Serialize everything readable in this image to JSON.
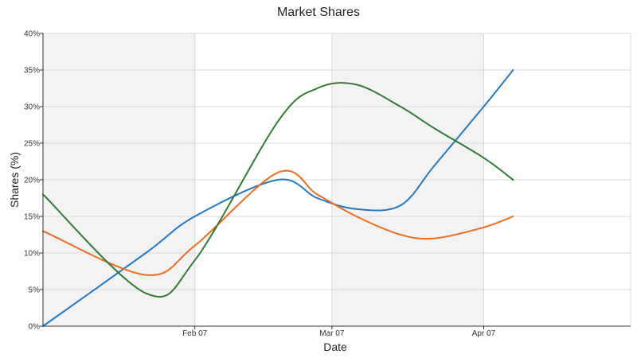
{
  "chart_data": {
    "type": "line",
    "title": "Market Shares",
    "xlabel": "Date",
    "ylabel": "Shares (%)",
    "y_tick_labels": [
      "0%",
      "5%",
      "10%",
      "15%",
      "20%",
      "25%",
      "30%",
      "35%",
      "40%"
    ],
    "ylim": [
      0,
      40
    ],
    "x_tick_labels": [
      "Feb 07",
      "Mar 07",
      "Apr 07"
    ],
    "x_ticks": [
      "2007-02-07",
      "2007-03-07",
      "2007-04-07"
    ],
    "xlim": [
      "2007-01-07",
      "2007-05-07"
    ],
    "band_boundaries": [
      "2007-01-07",
      "2007-02-07",
      "2007-03-07",
      "2007-04-07",
      "2007-05-07"
    ],
    "grid": true,
    "smooth": true,
    "x": [
      "2007-01-07",
      "2007-01-28",
      "2007-02-07",
      "2007-02-24",
      "2007-03-04",
      "2007-03-12",
      "2007-03-21",
      "2007-03-28",
      "2007-04-07",
      "2007-04-13"
    ],
    "series": [
      {
        "color": "#1f7ac6",
        "values": [
          0,
          10,
          15,
          20,
          17.5,
          16,
          16.5,
          22,
          30,
          35
        ]
      },
      {
        "color": "#ef6c1c",
        "values": [
          13,
          7,
          11,
          21,
          18,
          15,
          12.5,
          12,
          13.5,
          15
        ]
      },
      {
        "color": "#2e7d32",
        "values": [
          18,
          4.5,
          9,
          28,
          32.5,
          33,
          30,
          27,
          23,
          20
        ]
      }
    ],
    "colors": {
      "band": "#f3f3f3",
      "grid": "#d8d8d8",
      "axis": "#333333"
    }
  }
}
